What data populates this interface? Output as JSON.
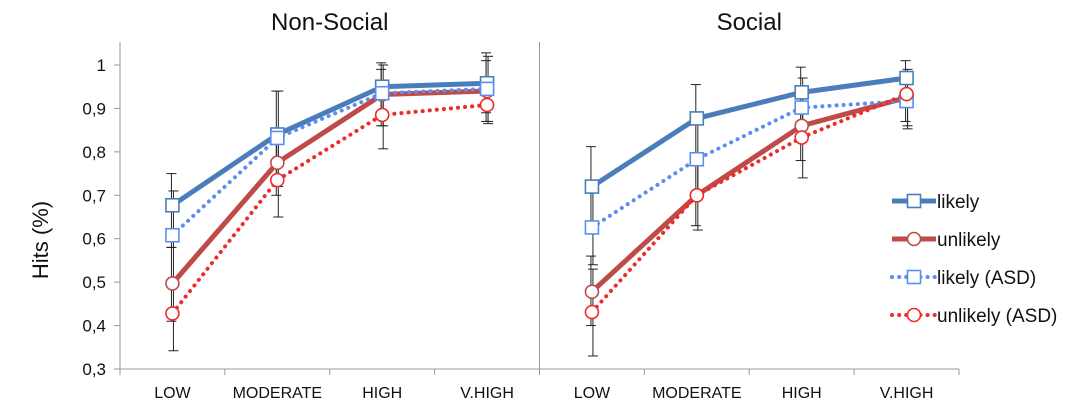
{
  "chart_data": {
    "type": "line",
    "ylabel": "Hits (%)",
    "ylim": [
      0.3,
      1.0
    ],
    "yticks": [
      "0,3",
      "0,4",
      "0,5",
      "0,6",
      "0,7",
      "0,8",
      "0,9",
      "1"
    ],
    "categories": [
      "LOW",
      "MODERATE",
      "HIGH",
      "V.HIGH"
    ],
    "legend_position": "right",
    "panels": [
      {
        "title": "Non-Social",
        "series": [
          {
            "name": "likely",
            "values": [
              0.677,
              0.84,
              0.95,
              0.958
            ],
            "err_low": [
              0.58,
              0.74,
              0.89,
              0.89
            ],
            "err_high": [
              0.75,
              0.94,
              1.005,
              1.028
            ]
          },
          {
            "name": "unlikely",
            "values": [
              0.497,
              0.775,
              0.932,
              0.94
            ],
            "err_low": [
              0.41,
              0.7,
              0.86,
              0.87
            ],
            "err_high": [
              0.58,
              0.84,
              0.99,
              1.01
            ]
          },
          {
            "name": "likely (ASD)",
            "values": [
              0.608,
              0.832,
              0.935,
              0.945
            ],
            "err_low": [
              0.51,
              0.72,
              0.86,
              0.87
            ],
            "err_high": [
              0.71,
              0.94,
              1.0,
              1.02
            ]
          },
          {
            "name": "unlikely (ASD)",
            "values": [
              0.428,
              0.735,
              0.885,
              0.908
            ],
            "err_low": [
              0.342,
              0.65,
              0.807,
              0.865
            ],
            "err_high": [
              0.5,
              0.82,
              0.95,
              0.96
            ]
          }
        ]
      },
      {
        "title": "Social",
        "series": [
          {
            "name": "likely",
            "values": [
              0.72,
              0.877,
              0.937,
              0.97
            ],
            "err_low": [
              0.62,
              0.79,
              0.87,
              0.92
            ],
            "err_high": [
              0.812,
              0.955,
              0.995,
              1.01
            ]
          },
          {
            "name": "unlikely",
            "values": [
              0.478,
              0.7,
              0.86,
              0.925
            ],
            "err_low": [
              0.4,
              0.63,
              0.78,
              0.87
            ],
            "err_high": [
              0.56,
              0.78,
              0.93,
              0.97
            ]
          },
          {
            "name": "likely (ASD)",
            "values": [
              0.626,
              0.783,
              0.902,
              0.917
            ],
            "err_low": [
              0.54,
              0.7,
              0.83,
              0.86
            ],
            "err_high": [
              0.72,
              0.87,
              0.97,
              0.97
            ]
          },
          {
            "name": "unlikely (ASD)",
            "values": [
              0.431,
              0.7,
              0.833,
              0.933
            ],
            "err_low": [
              0.33,
              0.62,
              0.74,
              0.853
            ],
            "err_high": [
              0.53,
              0.78,
              0.91,
              0.99
            ]
          }
        ]
      }
    ]
  },
  "styles": {
    "likely": {
      "color": "#4a7ebb",
      "dash": "solid",
      "marker": "square"
    },
    "unlikely": {
      "color": "#be4b48",
      "dash": "solid",
      "marker": "circle"
    },
    "likely (ASD)": {
      "color": "#5b8ef0",
      "dash": "dotted",
      "marker": "square"
    },
    "unlikely (ASD)": {
      "color": "#ee2b2b",
      "dash": "dotted",
      "marker": "circle"
    }
  }
}
